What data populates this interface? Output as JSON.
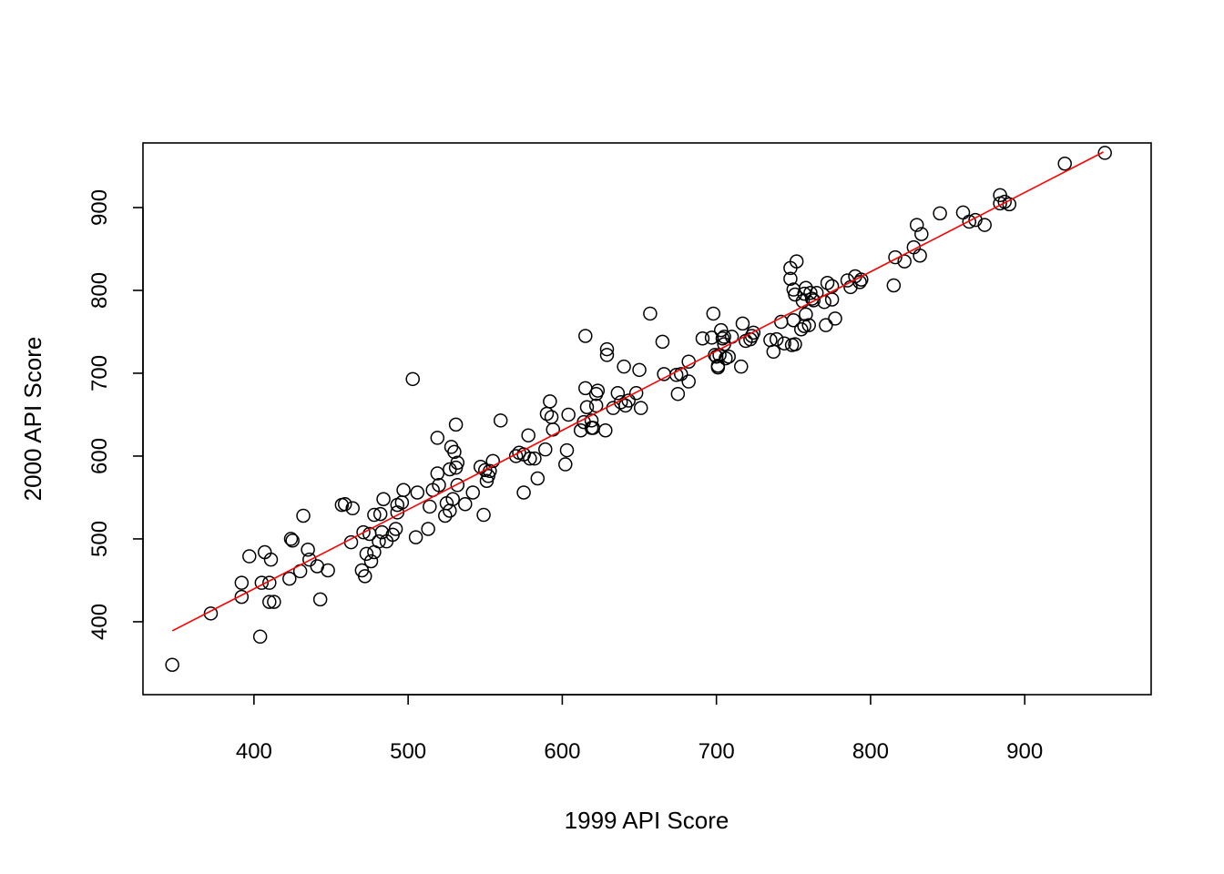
{
  "chart_data": {
    "type": "scatter",
    "title": "",
    "xlabel": "1999 API Score",
    "ylabel": "2000 API Score",
    "xlim": [
      328,
      982
    ],
    "ylim": [
      312,
      978
    ],
    "xticks": [
      400,
      500,
      600,
      700,
      800,
      900
    ],
    "yticks": [
      400,
      500,
      600,
      700,
      800,
      900
    ],
    "grid": false,
    "legend": "none",
    "point_color": "#000000",
    "fit_line_color": "#ff0000",
    "fit_line": {
      "x": [
        347,
        951
      ],
      "y": [
        389,
        967
      ]
    },
    "points": [
      [
        347,
        348
      ],
      [
        372,
        410
      ],
      [
        392,
        430
      ],
      [
        392,
        447
      ],
      [
        397,
        479
      ],
      [
        404,
        382
      ],
      [
        405,
        447
      ],
      [
        407,
        484
      ],
      [
        410,
        424
      ],
      [
        410,
        447
      ],
      [
        411,
        475
      ],
      [
        413,
        424
      ],
      [
        423,
        452
      ],
      [
        424,
        500
      ],
      [
        425,
        498
      ],
      [
        430,
        461
      ],
      [
        432,
        528
      ],
      [
        435,
        487
      ],
      [
        436,
        475
      ],
      [
        441,
        467
      ],
      [
        443,
        427
      ],
      [
        448,
        462
      ],
      [
        457,
        541
      ],
      [
        459,
        542
      ],
      [
        463,
        496
      ],
      [
        464,
        537
      ],
      [
        470,
        462
      ],
      [
        471,
        508
      ],
      [
        472,
        455
      ],
      [
        473,
        482
      ],
      [
        475,
        506
      ],
      [
        476,
        473
      ],
      [
        478,
        484
      ],
      [
        478,
        529
      ],
      [
        481,
        497
      ],
      [
        482,
        530
      ],
      [
        483,
        508
      ],
      [
        484,
        548
      ],
      [
        486,
        497
      ],
      [
        490,
        505
      ],
      [
        492,
        512
      ],
      [
        493,
        541
      ],
      [
        493,
        532
      ],
      [
        496,
        544
      ],
      [
        497,
        559
      ],
      [
        503,
        693
      ],
      [
        505,
        502
      ],
      [
        506,
        556
      ],
      [
        513,
        512
      ],
      [
        514,
        539
      ],
      [
        516,
        559
      ],
      [
        519,
        622
      ],
      [
        519,
        579
      ],
      [
        520,
        565
      ],
      [
        524,
        528
      ],
      [
        525,
        543
      ],
      [
        527,
        584
      ],
      [
        527,
        534
      ],
      [
        528,
        611
      ],
      [
        529,
        548
      ],
      [
        530,
        605
      ],
      [
        531,
        586
      ],
      [
        531,
        638
      ],
      [
        532,
        592
      ],
      [
        532,
        565
      ],
      [
        537,
        542
      ],
      [
        542,
        556
      ],
      [
        547,
        587
      ],
      [
        549,
        529
      ],
      [
        550,
        583
      ],
      [
        551,
        570
      ],
      [
        552,
        576
      ],
      [
        553,
        582
      ],
      [
        555,
        594
      ],
      [
        560,
        643
      ],
      [
        570,
        600
      ],
      [
        572,
        604
      ],
      [
        575,
        556
      ],
      [
        575,
        602
      ],
      [
        578,
        625
      ],
      [
        579,
        597
      ],
      [
        582,
        597
      ],
      [
        584,
        573
      ],
      [
        589,
        608
      ],
      [
        590,
        651
      ],
      [
        592,
        666
      ],
      [
        593,
        647
      ],
      [
        594,
        632
      ],
      [
        602,
        590
      ],
      [
        603,
        607
      ],
      [
        604,
        650
      ],
      [
        612,
        631
      ],
      [
        614,
        641
      ],
      [
        615,
        745
      ],
      [
        615,
        682
      ],
      [
        616,
        659
      ],
      [
        619,
        634
      ],
      [
        619,
        643
      ],
      [
        620,
        634
      ],
      [
        622,
        661
      ],
      [
        622,
        675
      ],
      [
        623,
        679
      ],
      [
        628,
        631
      ],
      [
        629,
        722
      ],
      [
        629,
        729
      ],
      [
        633,
        658
      ],
      [
        636,
        676
      ],
      [
        638,
        665
      ],
      [
        640,
        708
      ],
      [
        641,
        661
      ],
      [
        643,
        667
      ],
      [
        648,
        676
      ],
      [
        650,
        704
      ],
      [
        651,
        658
      ],
      [
        657,
        772
      ],
      [
        665,
        738
      ],
      [
        666,
        699
      ],
      [
        674,
        698
      ],
      [
        675,
        675
      ],
      [
        677,
        699
      ],
      [
        682,
        714
      ],
      [
        682,
        690
      ],
      [
        691,
        742
      ],
      [
        697,
        743
      ],
      [
        698,
        772
      ],
      [
        699,
        722
      ],
      [
        700,
        720
      ],
      [
        701,
        707
      ],
      [
        701,
        709
      ],
      [
        702,
        722
      ],
      [
        703,
        752
      ],
      [
        704,
        742
      ],
      [
        705,
        735
      ],
      [
        705,
        744
      ],
      [
        706,
        718
      ],
      [
        708,
        720
      ],
      [
        710,
        744
      ],
      [
        716,
        708
      ],
      [
        717,
        760
      ],
      [
        719,
        739
      ],
      [
        722,
        741
      ],
      [
        723,
        745
      ],
      [
        724,
        749
      ],
      [
        735,
        740
      ],
      [
        737,
        726
      ],
      [
        739,
        741
      ],
      [
        742,
        762
      ],
      [
        744,
        736
      ],
      [
        748,
        814
      ],
      [
        748,
        827
      ],
      [
        749,
        734
      ],
      [
        750,
        764
      ],
      [
        750,
        801
      ],
      [
        751,
        795
      ],
      [
        751,
        735
      ],
      [
        752,
        835
      ],
      [
        755,
        753
      ],
      [
        756,
        787
      ],
      [
        757,
        796
      ],
      [
        757,
        757
      ],
      [
        758,
        771
      ],
      [
        758,
        803
      ],
      [
        760,
        758
      ],
      [
        761,
        797
      ],
      [
        762,
        790
      ],
      [
        763,
        788
      ],
      [
        765,
        797
      ],
      [
        770,
        786
      ],
      [
        771,
        758
      ],
      [
        772,
        809
      ],
      [
        775,
        805
      ],
      [
        775,
        789
      ],
      [
        777,
        766
      ],
      [
        785,
        812
      ],
      [
        787,
        804
      ],
      [
        790,
        817
      ],
      [
        793,
        810
      ],
      [
        794,
        813
      ],
      [
        815,
        806
      ],
      [
        816,
        840
      ],
      [
        822,
        835
      ],
      [
        828,
        852
      ],
      [
        830,
        879
      ],
      [
        832,
        842
      ],
      [
        833,
        868
      ],
      [
        845,
        893
      ],
      [
        860,
        894
      ],
      [
        864,
        883
      ],
      [
        868,
        885
      ],
      [
        874,
        879
      ],
      [
        884,
        915
      ],
      [
        884,
        905
      ],
      [
        887,
        907
      ],
      [
        890,
        904
      ],
      [
        926,
        953
      ],
      [
        952,
        966
      ]
    ]
  }
}
